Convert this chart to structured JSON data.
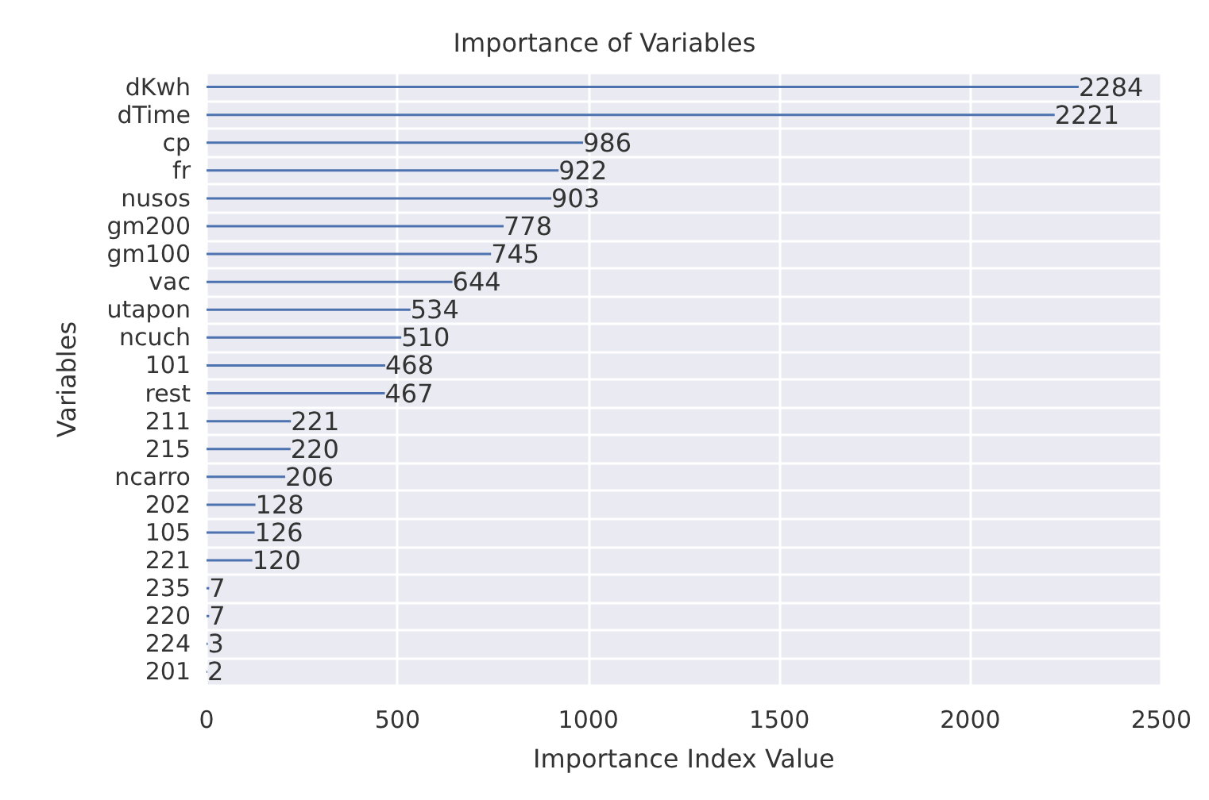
{
  "chart_data": {
    "type": "bar",
    "orientation": "horizontal",
    "title": "Importance of Variables",
    "xlabel": "Importance Index Value",
    "ylabel": "Variables",
    "categories": [
      "dKwh",
      "dTime",
      "cp",
      "fr",
      "nusos",
      "gm200",
      "gm100",
      "vac",
      "utapon",
      "ncuch",
      "101",
      "rest",
      "211",
      "215",
      "ncarro",
      "202",
      "105",
      "221",
      "235",
      "220",
      "224",
      "201"
    ],
    "values": [
      2284,
      2221,
      986,
      922,
      903,
      778,
      745,
      644,
      534,
      510,
      468,
      467,
      221,
      220,
      206,
      128,
      126,
      120,
      7,
      7,
      3,
      2
    ],
    "color": "#4c72b0",
    "xlim": [
      0,
      2500
    ],
    "xticks": [
      0,
      500,
      1000,
      1500,
      2000,
      2500
    ],
    "grid": true,
    "data_labels": true
  }
}
